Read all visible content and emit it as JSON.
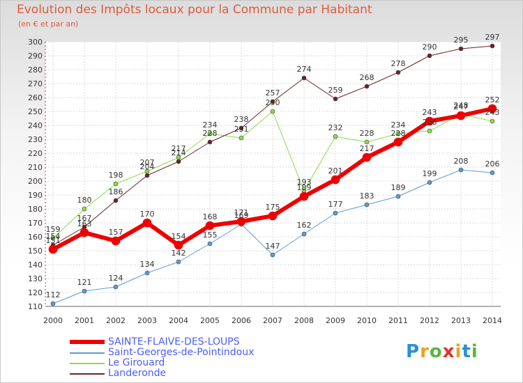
{
  "header": {
    "title": "Evolution des Impôts locaux pour la Commune par Habitant",
    "subtitle": "(en € et par an)"
  },
  "logo": {
    "letters": [
      "P",
      "r",
      "o",
      "x",
      "i",
      "t",
      "i"
    ],
    "colors": [
      "#2a8fd8",
      "#f0a020",
      "#58b840",
      "#e03030",
      "#f0a020",
      "#2a8fd8",
      "#58b840"
    ]
  },
  "chart_data": {
    "type": "line",
    "x": [
      "2000",
      "2001",
      "2002",
      "2003",
      "2004",
      "2005",
      "2006",
      "2007",
      "2008",
      "2009",
      "2010",
      "2011",
      "2012",
      "2013",
      "2014"
    ],
    "ylim": [
      110,
      300
    ],
    "yticks": [
      110,
      120,
      130,
      140,
      150,
      160,
      170,
      180,
      190,
      200,
      210,
      220,
      230,
      240,
      250,
      260,
      270,
      280,
      290,
      300
    ],
    "grid": true,
    "legend_position": "bottom-left",
    "series": [
      {
        "name": "Saint-Georges-de-Pointindoux",
        "color": "#5b9bd5",
        "width": 1,
        "values": [
          112,
          121,
          124,
          134,
          142,
          155,
          169,
          147,
          162,
          177,
          183,
          189,
          199,
          208,
          206
        ]
      },
      {
        "name": "Le Girouard",
        "color": "#88dd44",
        "width": 1,
        "values": [
          159,
          180,
          198,
          207,
          217,
          234,
          231,
          250,
          193,
          232,
          228,
          234,
          236,
          248,
          243
        ]
      },
      {
        "name": "Landeronde",
        "color": "#6b2226",
        "width": 1,
        "values": [
          154,
          167,
          186,
          204,
          214,
          228,
          238,
          257,
          274,
          259,
          268,
          278,
          290,
          295,
          297
        ]
      },
      {
        "name": "SAINTE-FLAIVE-DES-LOUPS",
        "color": "#ee0000",
        "width": 6,
        "values": [
          151,
          163,
          157,
          170,
          154,
          168,
          171,
          175,
          189,
          201,
          217,
          228,
          243,
          247,
          252
        ]
      }
    ]
  }
}
